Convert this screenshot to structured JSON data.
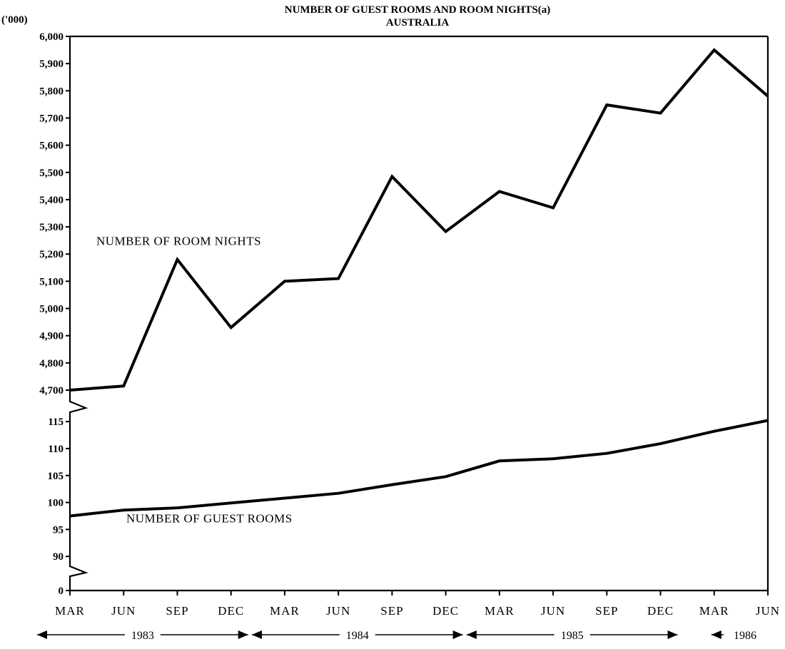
{
  "chart_data": {
    "type": "line",
    "title": "NUMBER OF GUEST ROOMS AND ROOM NIGHTS(a)",
    "subtitle": "AUSTRALIA",
    "ylabel": "('000)",
    "x_ticks": [
      "MAR",
      "JUN",
      "SEP",
      "DEC",
      "MAR",
      "JUN",
      "SEP",
      "DEC",
      "MAR",
      "JUN",
      "SEP",
      "DEC",
      "MAR",
      "JUN"
    ],
    "years": [
      {
        "label": "1983",
        "start": 0,
        "end": 3,
        "left_arrow": true,
        "right_arrow": true
      },
      {
        "label": "1984",
        "start": 4,
        "end": 7,
        "left_arrow": true,
        "right_arrow": true
      },
      {
        "label": "1985",
        "start": 8,
        "end": 11,
        "left_arrow": true,
        "right_arrow": true
      },
      {
        "label": "1986",
        "start": 12,
        "end": 13,
        "left_arrow": true,
        "right_arrow": false
      }
    ],
    "upper_axis": {
      "ticks": [
        4700,
        4800,
        4900,
        5000,
        5100,
        5200,
        5300,
        5400,
        5500,
        5600,
        5700,
        5800,
        5900,
        6000
      ],
      "tick_labels": [
        "4,700",
        "4,800",
        "4,900",
        "5,000",
        "5,100",
        "5,200",
        "5,300",
        "5,400",
        "5,500",
        "5,600",
        "5,700",
        "5,800",
        "5,900",
        "6,000"
      ],
      "range": [
        4700,
        6000
      ]
    },
    "lower_axis": {
      "ticks": [
        90,
        95,
        100,
        105,
        110,
        115
      ],
      "tick_labels": [
        "90",
        "95",
        "100",
        "105",
        "110",
        "115"
      ],
      "range": [
        85,
        117
      ],
      "zero_label": "0"
    },
    "series": [
      {
        "name": "NUMBER OF ROOM NIGHTS",
        "axis": "upper",
        "values": [
          4700,
          4715,
          5180,
          4930,
          5100,
          5110,
          5485,
          5283,
          5430,
          5370,
          5748,
          5718,
          5950,
          5780
        ]
      },
      {
        "name": "NUMBER OF GUEST ROOMS",
        "axis": "lower",
        "values": [
          97.5,
          98.6,
          99.0,
          99.9,
          100.8,
          101.7,
          103.3,
          104.8,
          107.7,
          108.1,
          109.1,
          110.9,
          113.2,
          115.2
        ]
      }
    ],
    "grid": false,
    "legend": "none"
  }
}
